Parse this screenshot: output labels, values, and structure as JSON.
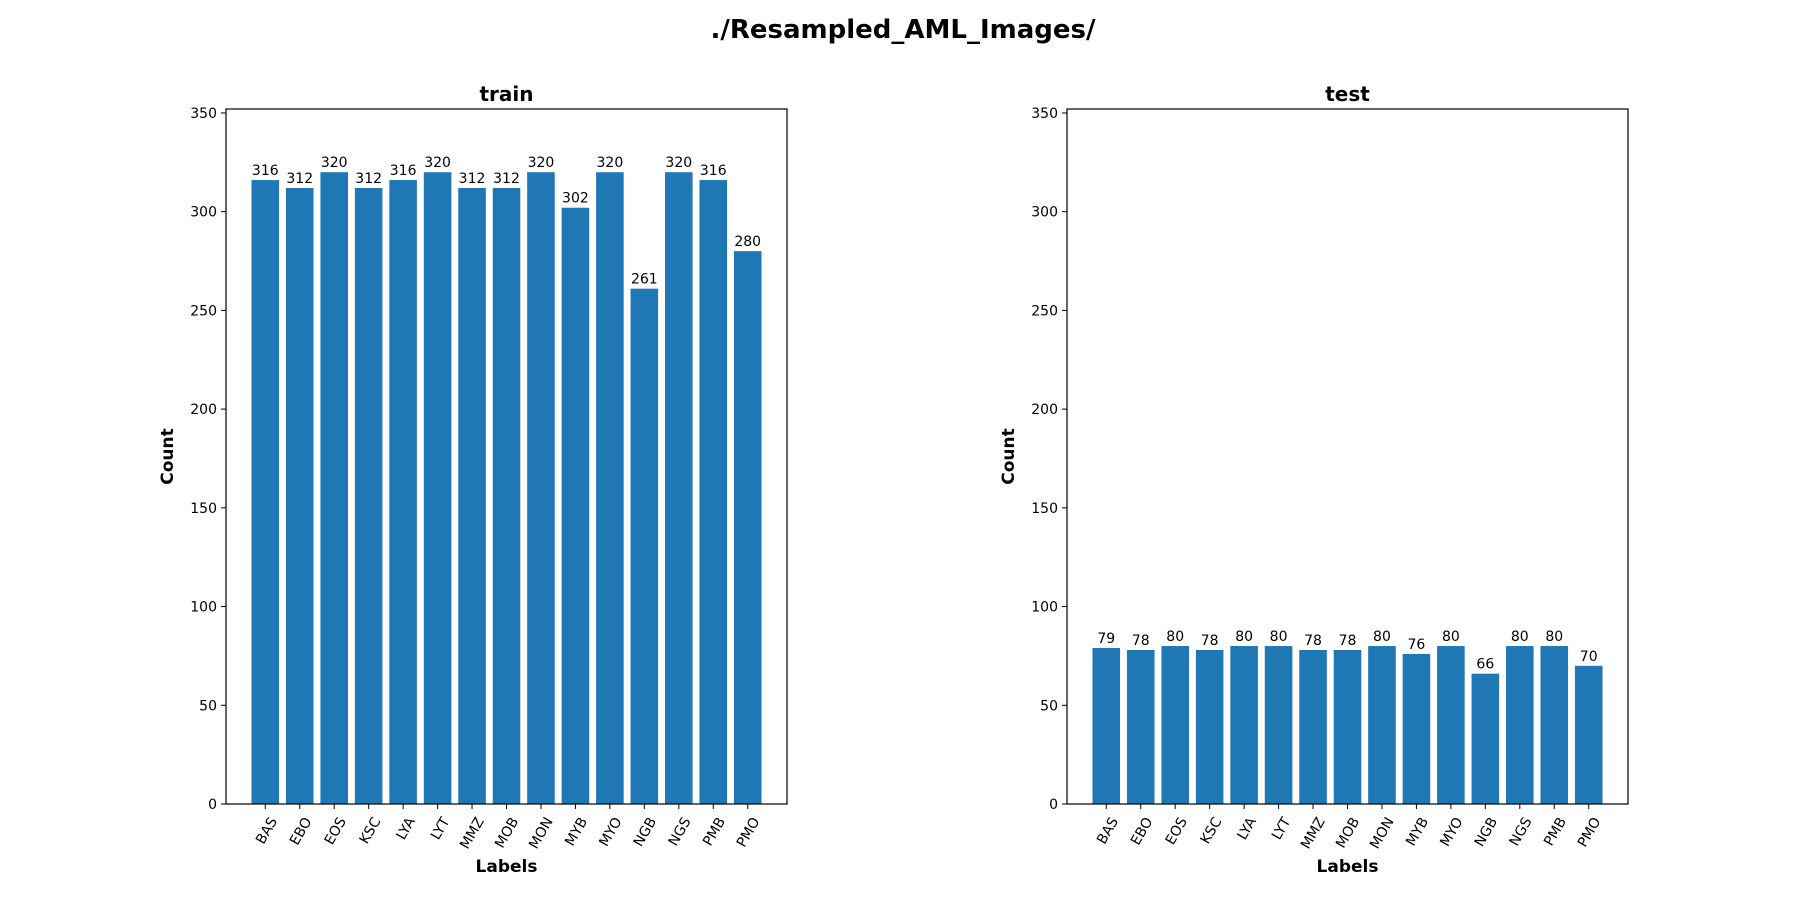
{
  "figure": {
    "title": "./Resampled_AML_Images/"
  },
  "colors": {
    "bar": "#1f77b4"
  },
  "chart_data": [
    {
      "type": "bar",
      "title": "train",
      "xlabel": "Labels",
      "ylabel": "Count",
      "ylim": [
        0,
        352
      ],
      "yticks": [
        0,
        50,
        100,
        150,
        200,
        250,
        300,
        350
      ],
      "categories": [
        "BAS",
        "EBO",
        "EOS",
        "KSC",
        "LYA",
        "LYT",
        "MMZ",
        "MOB",
        "MON",
        "MYB",
        "MYO",
        "NGB",
        "NGS",
        "PMB",
        "PMO"
      ],
      "values": [
        316,
        312,
        320,
        312,
        316,
        320,
        312,
        312,
        320,
        302,
        320,
        261,
        320,
        316,
        280
      ],
      "grid": false,
      "legend": "none"
    },
    {
      "type": "bar",
      "title": "test",
      "xlabel": "Labels",
      "ylabel": "Count",
      "ylim": [
        0,
        352
      ],
      "yticks": [
        0,
        50,
        100,
        150,
        200,
        250,
        300,
        350
      ],
      "categories": [
        "BAS",
        "EBO",
        "EOS",
        "KSC",
        "LYA",
        "LYT",
        "MMZ",
        "MOB",
        "MON",
        "MYB",
        "MYO",
        "NGB",
        "NGS",
        "PMB",
        "PMO"
      ],
      "values": [
        79,
        78,
        80,
        78,
        80,
        80,
        78,
        78,
        80,
        76,
        80,
        66,
        80,
        80,
        70
      ],
      "grid": false,
      "legend": "none"
    }
  ]
}
